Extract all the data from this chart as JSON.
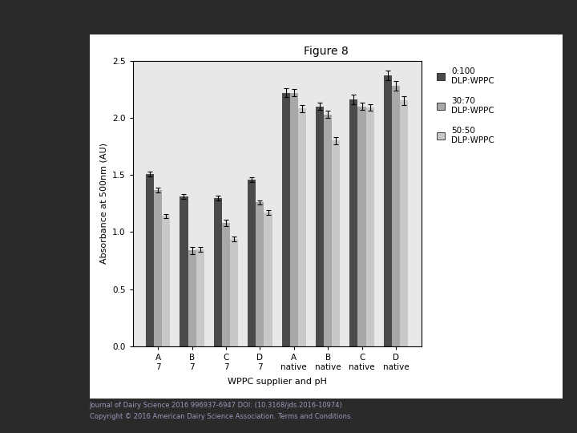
{
  "title": "Figure 8",
  "xlabel": "WPPC supplier and pH",
  "ylabel": "Absorbance at 500nm (AU)",
  "categories": [
    [
      "A",
      "7"
    ],
    [
      "B",
      "7"
    ],
    [
      "C",
      "7"
    ],
    [
      "D",
      "7"
    ],
    [
      "A",
      "native"
    ],
    [
      "B",
      "native"
    ],
    [
      "C",
      "native"
    ],
    [
      "D",
      "native"
    ]
  ],
  "series": {
    "0:100\nDLP:WPPC": {
      "values": [
        1.51,
        1.31,
        1.3,
        1.46,
        2.22,
        2.1,
        2.16,
        2.37
      ],
      "errors": [
        0.02,
        0.02,
        0.02,
        0.02,
        0.04,
        0.03,
        0.04,
        0.04
      ],
      "color": "#4a4a4a"
    },
    "30:70\nDLP:WPPC": {
      "values": [
        1.37,
        0.84,
        1.08,
        1.26,
        2.22,
        2.03,
        2.1,
        2.28
      ],
      "errors": [
        0.02,
        0.03,
        0.03,
        0.02,
        0.03,
        0.03,
        0.03,
        0.04
      ],
      "color": "#a8a8a8"
    },
    "50:50\nDLP:WPPC": {
      "values": [
        1.14,
        0.85,
        0.94,
        1.17,
        2.08,
        1.8,
        2.09,
        2.15
      ],
      "errors": [
        0.02,
        0.02,
        0.02,
        0.02,
        0.03,
        0.03,
        0.03,
        0.04
      ],
      "color": "#c8c8c8"
    }
  },
  "ylim": [
    0.0,
    2.5
  ],
  "yticks": [
    0.0,
    0.5,
    1.0,
    1.5,
    2.0,
    2.5
  ],
  "outer_bg": "#2a2a2a",
  "inner_bg": "#ffffff",
  "chart_bg": "#e8e8e8",
  "title_fontsize": 10,
  "axis_fontsize": 8,
  "tick_fontsize": 7.5,
  "legend_fontsize": 7.5,
  "footer_line1": "Journal of Dairy Science 2016 996937-6947 DOI: (10.3168/jds.2016-10974)",
  "footer_line2": "Copyright © 2016 American Dairy Science Association. Terms and Conditions.",
  "footer_fontsize": 6.0
}
